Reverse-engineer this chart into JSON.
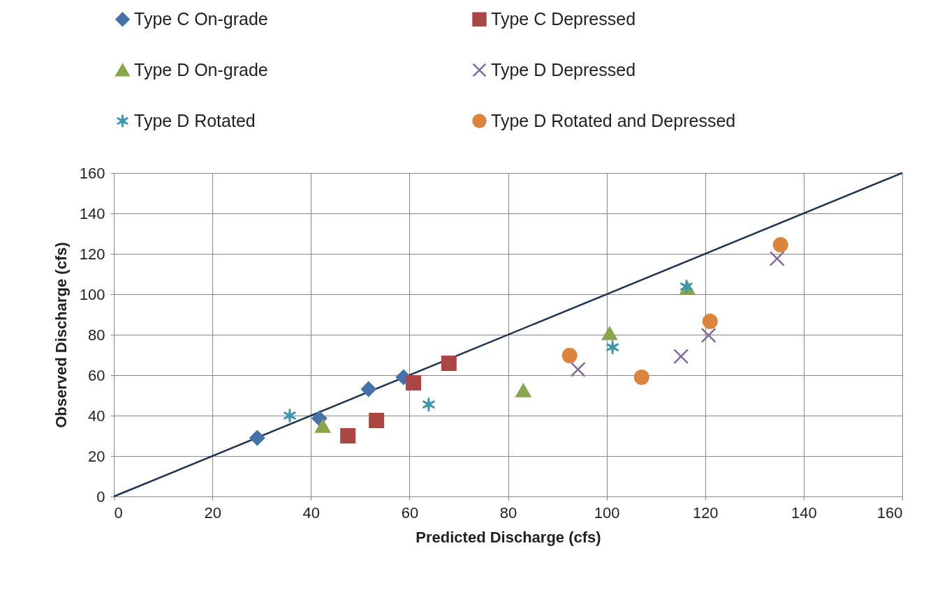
{
  "chart_data": {
    "type": "scatter",
    "xlabel": "Predicted Discharge (cfs)",
    "ylabel": "Observed Discharge (cfs)",
    "xlim": [
      0,
      160
    ],
    "xticks": [
      0,
      20,
      40,
      60,
      80,
      100,
      120,
      140,
      160
    ],
    "ylim": [
      0,
      160
    ],
    "yticks": [
      0,
      20,
      40,
      60,
      80,
      100,
      120,
      140,
      160
    ],
    "grid": true,
    "legend": "top",
    "series": [
      {
        "name": "Type C On-grade",
        "color": "#4572a7",
        "marker": "diamond",
        "x": [
          29.1,
          41.7,
          51.7,
          58.8
        ],
        "values": [
          29.0,
          38.6,
          53.1,
          59.0
        ]
      },
      {
        "name": "Type C Depressed",
        "color": "#aa4643",
        "marker": "square",
        "x": [
          47.5,
          53.3,
          60.8,
          68.0
        ],
        "values": [
          30.0,
          37.6,
          56.2,
          65.9
        ]
      },
      {
        "name": "Type D On-grade",
        "color": "#89a54e",
        "marker": "triangle",
        "x": [
          42.4,
          83.1,
          100.6,
          116.4
        ],
        "values": [
          34.8,
          52.4,
          80.7,
          103.1
        ]
      },
      {
        "name": "Type D Depressed",
        "color": "#80699b",
        "marker": "cross",
        "x": [
          94.2,
          115.1,
          120.7,
          134.6
        ],
        "values": [
          62.8,
          69.3,
          79.7,
          117.6
        ]
      },
      {
        "name": "Type D Rotated",
        "color": "#3d96ae",
        "x": [
          35.7,
          63.9,
          101.2,
          116.2
        ],
        "values": [
          40.0,
          45.5,
          73.8,
          103.8
        ]
      },
      {
        "name": "Type D Rotated and Depressed",
        "color": "#db843d",
        "marker": "circle",
        "x": [
          92.5,
          107.1,
          121.0,
          135.3
        ],
        "values": [
          69.7,
          59.0,
          86.6,
          124.5
        ]
      },
      {
        "type": "line",
        "color": "#1f3552",
        "x": [
          0,
          160
        ],
        "values": [
          0,
          160
        ]
      }
    ]
  }
}
